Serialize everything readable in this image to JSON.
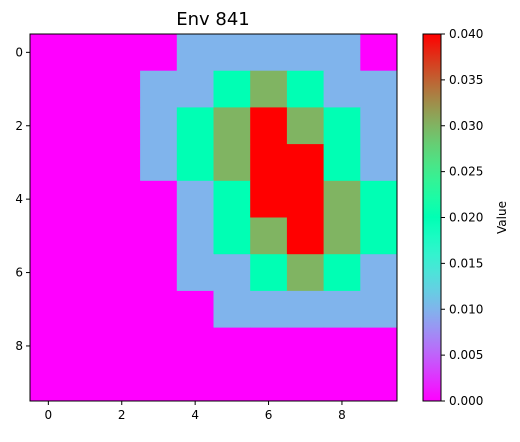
{
  "chart_data": {
    "type": "heatmap",
    "title": "Env 841",
    "xlabel": "",
    "ylabel": "",
    "x_ticks": [
      "0",
      "2",
      "4",
      "6",
      "8"
    ],
    "y_ticks": [
      "0",
      "2",
      "4",
      "6",
      "8"
    ],
    "colormap": "rainbow",
    "colorbar": {
      "label": "Value",
      "range": [
        0.0,
        0.04
      ],
      "ticks": [
        "0.000",
        "0.005",
        "0.010",
        "0.015",
        "0.020",
        "0.025",
        "0.030",
        "0.035",
        "0.040"
      ]
    },
    "grid": false,
    "values": [
      [
        0.0,
        0.0,
        0.0,
        0.0,
        0.01,
        0.01,
        0.01,
        0.01,
        0.01,
        0.0
      ],
      [
        0.0,
        0.0,
        0.0,
        0.01,
        0.01,
        0.02,
        0.03,
        0.02,
        0.01,
        0.01
      ],
      [
        0.0,
        0.0,
        0.0,
        0.01,
        0.02,
        0.03,
        0.04,
        0.03,
        0.02,
        0.01
      ],
      [
        0.0,
        0.0,
        0.0,
        0.01,
        0.02,
        0.03,
        0.04,
        0.04,
        0.02,
        0.01
      ],
      [
        0.0,
        0.0,
        0.0,
        0.0,
        0.01,
        0.02,
        0.04,
        0.04,
        0.03,
        0.02
      ],
      [
        0.0,
        0.0,
        0.0,
        0.0,
        0.01,
        0.02,
        0.03,
        0.04,
        0.03,
        0.02
      ],
      [
        0.0,
        0.0,
        0.0,
        0.0,
        0.01,
        0.01,
        0.02,
        0.03,
        0.02,
        0.01
      ],
      [
        0.0,
        0.0,
        0.0,
        0.0,
        0.0,
        0.01,
        0.01,
        0.01,
        0.01,
        0.01
      ],
      [
        0.0,
        0.0,
        0.0,
        0.0,
        0.0,
        0.0,
        0.0,
        0.0,
        0.0,
        0.0
      ],
      [
        0.0,
        0.0,
        0.0,
        0.0,
        0.0,
        0.0,
        0.0,
        0.0,
        0.0,
        0.0
      ]
    ]
  }
}
